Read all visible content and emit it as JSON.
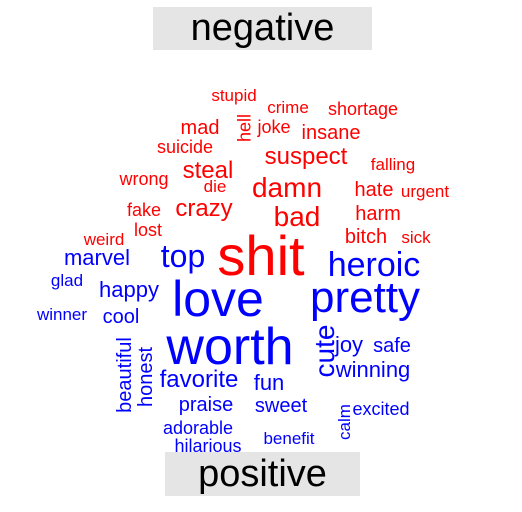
{
  "chart_data": {
    "type": "comparison-wordcloud",
    "groups": [
      {
        "name": "negative",
        "color": "#ff0000"
      },
      {
        "name": "positive",
        "color": "#0000ff"
      }
    ],
    "words": [
      {
        "text": "shit",
        "group": "negative"
      },
      {
        "text": "damn",
        "group": "negative"
      },
      {
        "text": "bad",
        "group": "negative"
      },
      {
        "text": "suspect",
        "group": "negative"
      },
      {
        "text": "crazy",
        "group": "negative"
      },
      {
        "text": "steal",
        "group": "negative"
      },
      {
        "text": "hate",
        "group": "negative"
      },
      {
        "text": "harm",
        "group": "negative"
      },
      {
        "text": "bitch",
        "group": "negative"
      },
      {
        "text": "insane",
        "group": "negative"
      },
      {
        "text": "mad",
        "group": "negative"
      },
      {
        "text": "suicide",
        "group": "negative"
      },
      {
        "text": "hell",
        "group": "negative"
      },
      {
        "text": "joke",
        "group": "negative"
      },
      {
        "text": "shortage",
        "group": "negative"
      },
      {
        "text": "crime",
        "group": "negative"
      },
      {
        "text": "stupid",
        "group": "negative"
      },
      {
        "text": "wrong",
        "group": "negative"
      },
      {
        "text": "falling",
        "group": "negative"
      },
      {
        "text": "urgent",
        "group": "negative"
      },
      {
        "text": "die",
        "group": "negative"
      },
      {
        "text": "fake",
        "group": "negative"
      },
      {
        "text": "lost",
        "group": "negative"
      },
      {
        "text": "weird",
        "group": "negative"
      },
      {
        "text": "sick",
        "group": "negative"
      },
      {
        "text": "worth",
        "group": "positive"
      },
      {
        "text": "love",
        "group": "positive"
      },
      {
        "text": "pretty",
        "group": "positive"
      },
      {
        "text": "heroic",
        "group": "positive"
      },
      {
        "text": "top",
        "group": "positive"
      },
      {
        "text": "cute",
        "group": "positive"
      },
      {
        "text": "favorite",
        "group": "positive"
      },
      {
        "text": "winning",
        "group": "positive"
      },
      {
        "text": "happy",
        "group": "positive"
      },
      {
        "text": "marvel",
        "group": "positive"
      },
      {
        "text": "fun",
        "group": "positive"
      },
      {
        "text": "sweet",
        "group": "positive"
      },
      {
        "text": "praise",
        "group": "positive"
      },
      {
        "text": "joy",
        "group": "positive"
      },
      {
        "text": "safe",
        "group": "positive"
      },
      {
        "text": "cool",
        "group": "positive"
      },
      {
        "text": "honest",
        "group": "positive"
      },
      {
        "text": "beautiful",
        "group": "positive"
      },
      {
        "text": "excited",
        "group": "positive"
      },
      {
        "text": "adorable",
        "group": "positive"
      },
      {
        "text": "hilarious",
        "group": "positive"
      },
      {
        "text": "benefit",
        "group": "positive"
      },
      {
        "text": "calm",
        "group": "positive"
      },
      {
        "text": "winner",
        "group": "positive"
      },
      {
        "text": "glad",
        "group": "positive"
      }
    ]
  }
}
